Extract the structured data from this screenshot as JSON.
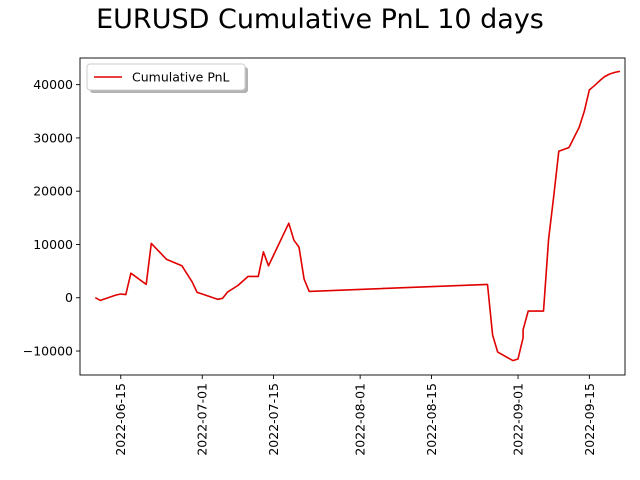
{
  "chart_data": {
    "type": "line",
    "title": "EURUSD Cumulative PnL 10 days",
    "xlabel": "",
    "ylabel": "",
    "legend": {
      "placement": "top-left",
      "entries": [
        "Cumulative PnL"
      ]
    },
    "colors": {
      "series": "#e00000",
      "axes": "#000000",
      "background": "#ffffff"
    },
    "xlim": [
      "2022-06-07",
      "2022-09-22"
    ],
    "ylim": [
      -14500,
      45000
    ],
    "xticks": [
      "2022-06-15",
      "2022-07-01",
      "2022-07-15",
      "2022-08-01",
      "2022-08-15",
      "2022-09-01",
      "2022-09-15"
    ],
    "yticks": [
      -10000,
      0,
      10000,
      20000,
      30000,
      40000
    ],
    "ytick_labels": [
      "−10000",
      "0",
      "10000",
      "20000",
      "30000",
      "40000"
    ],
    "grid": false,
    "series": [
      {
        "name": "Cumulative PnL",
        "color": "#e00000",
        "x": [
          "2022-06-10",
          "2022-06-11",
          "2022-06-14",
          "2022-06-15",
          "2022-06-16",
          "2022-06-17",
          "2022-06-20",
          "2022-06-21",
          "2022-06-24",
          "2022-06-27",
          "2022-06-29",
          "2022-06-30",
          "2022-07-01",
          "2022-07-04",
          "2022-07-05",
          "2022-07-06",
          "2022-07-08",
          "2022-07-10",
          "2022-07-12",
          "2022-07-13",
          "2022-07-14",
          "2022-07-14",
          "2022-07-15",
          "2022-07-18",
          "2022-07-19",
          "2022-07-20",
          "2022-07-21",
          "2022-07-22",
          "2022-08-26",
          "2022-08-27",
          "2022-08-28",
          "2022-08-31",
          "2022-09-01",
          "2022-09-02",
          "2022-09-02",
          "2022-09-03",
          "2022-09-04",
          "2022-09-05",
          "2022-09-06",
          "2022-09-07",
          "2022-09-08",
          "2022-09-09",
          "2022-09-11",
          "2022-09-13",
          "2022-09-14",
          "2022-09-15",
          "2022-09-16",
          "2022-09-17",
          "2022-09-18",
          "2022-09-19",
          "2022-09-20",
          "2022-09-21"
        ],
        "y": [
          0,
          -500,
          500,
          700,
          600,
          4600,
          2500,
          10200,
          7200,
          6000,
          3000,
          1000,
          700,
          -300,
          -100,
          1100,
          2300,
          4000,
          4000,
          8600,
          6000,
          6000,
          8000,
          14000,
          10800,
          9500,
          3500,
          1200,
          2500,
          -7000,
          -10200,
          -11800,
          -11500,
          -7500,
          -6000,
          -2500,
          -2500,
          -2500,
          -2500,
          11000,
          19000,
          27500,
          28200,
          32000,
          35000,
          39000,
          39800,
          40700,
          41500,
          42000,
          42300,
          42500
        ]
      }
    ]
  }
}
